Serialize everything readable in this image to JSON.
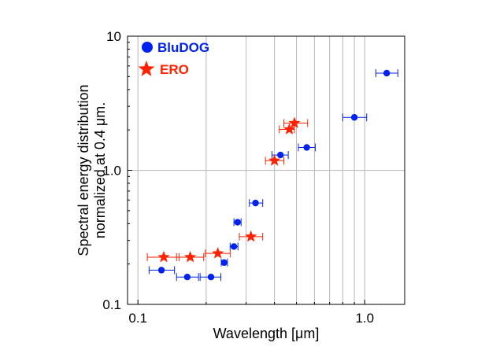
{
  "chart_data": {
    "type": "scatter",
    "title": "",
    "xlabel": "Wavelength [μm]",
    "ylabel_line1": "Spectral energy distribution",
    "ylabel_line2": "normalized at 0.4 μm.",
    "x_scale": "log",
    "y_scale": "log",
    "xlim": [
      0.09,
      1.5
    ],
    "ylim": [
      0.1,
      10
    ],
    "x_ticks": [
      {
        "value": 0.1,
        "label": "0.1"
      },
      {
        "value": 1.0,
        "label": "1.0"
      }
    ],
    "y_ticks": [
      {
        "value": 0.1,
        "label": "0.1"
      },
      {
        "value": 1.0,
        "label": "1.0"
      },
      {
        "value": 10,
        "label": "10"
      }
    ],
    "grid": {
      "x": true,
      "y": true
    },
    "legend_position": "top-left",
    "series": [
      {
        "name": "BluDOG",
        "color": "#0022ee",
        "marker": "circle",
        "points": [
          {
            "x": 0.127,
            "y": 0.18,
            "xerr": [
              0.112,
              0.145
            ]
          },
          {
            "x": 0.165,
            "y": 0.16,
            "xerr": [
              0.148,
              0.185
            ]
          },
          {
            "x": 0.21,
            "y": 0.16,
            "xerr": [
              0.188,
              0.232
            ]
          },
          {
            "x": 0.24,
            "y": 0.205,
            "xerr": [
              0.233,
              0.248
            ]
          },
          {
            "x": 0.265,
            "y": 0.27,
            "xerr": [
              0.255,
              0.276
            ]
          },
          {
            "x": 0.275,
            "y": 0.41,
            "xerr": [
              0.265,
              0.285
            ]
          },
          {
            "x": 0.33,
            "y": 0.57,
            "xerr": [
              0.31,
              0.355
            ]
          },
          {
            "x": 0.425,
            "y": 1.3,
            "xerr": [
              0.39,
              0.46
            ]
          },
          {
            "x": 0.555,
            "y": 1.48,
            "xerr": [
              0.51,
              0.605
            ]
          },
          {
            "x": 0.9,
            "y": 2.48,
            "xerr": [
              0.8,
              1.02
            ]
          },
          {
            "x": 1.25,
            "y": 5.3,
            "xerr": [
              1.12,
              1.4
            ]
          }
        ]
      },
      {
        "name": "ERO",
        "color": "#ff2200",
        "marker": "star",
        "points": [
          {
            "x": 0.13,
            "y": 0.225,
            "xerr": [
              0.11,
              0.152
            ]
          },
          {
            "x": 0.17,
            "y": 0.225,
            "xerr": [
              0.148,
              0.195
            ]
          },
          {
            "x": 0.225,
            "y": 0.24,
            "xerr": [
              0.198,
              0.255
            ]
          },
          {
            "x": 0.315,
            "y": 0.32,
            "xerr": [
              0.28,
              0.355
            ]
          },
          {
            "x": 0.4,
            "y": 1.18,
            "xerr": [
              0.365,
              0.44
            ]
          },
          {
            "x": 0.465,
            "y": 2.02,
            "xerr": [
              0.42,
              0.49
            ]
          },
          {
            "x": 0.49,
            "y": 2.25,
            "xerr": [
              0.44,
              0.56
            ]
          }
        ]
      }
    ]
  }
}
